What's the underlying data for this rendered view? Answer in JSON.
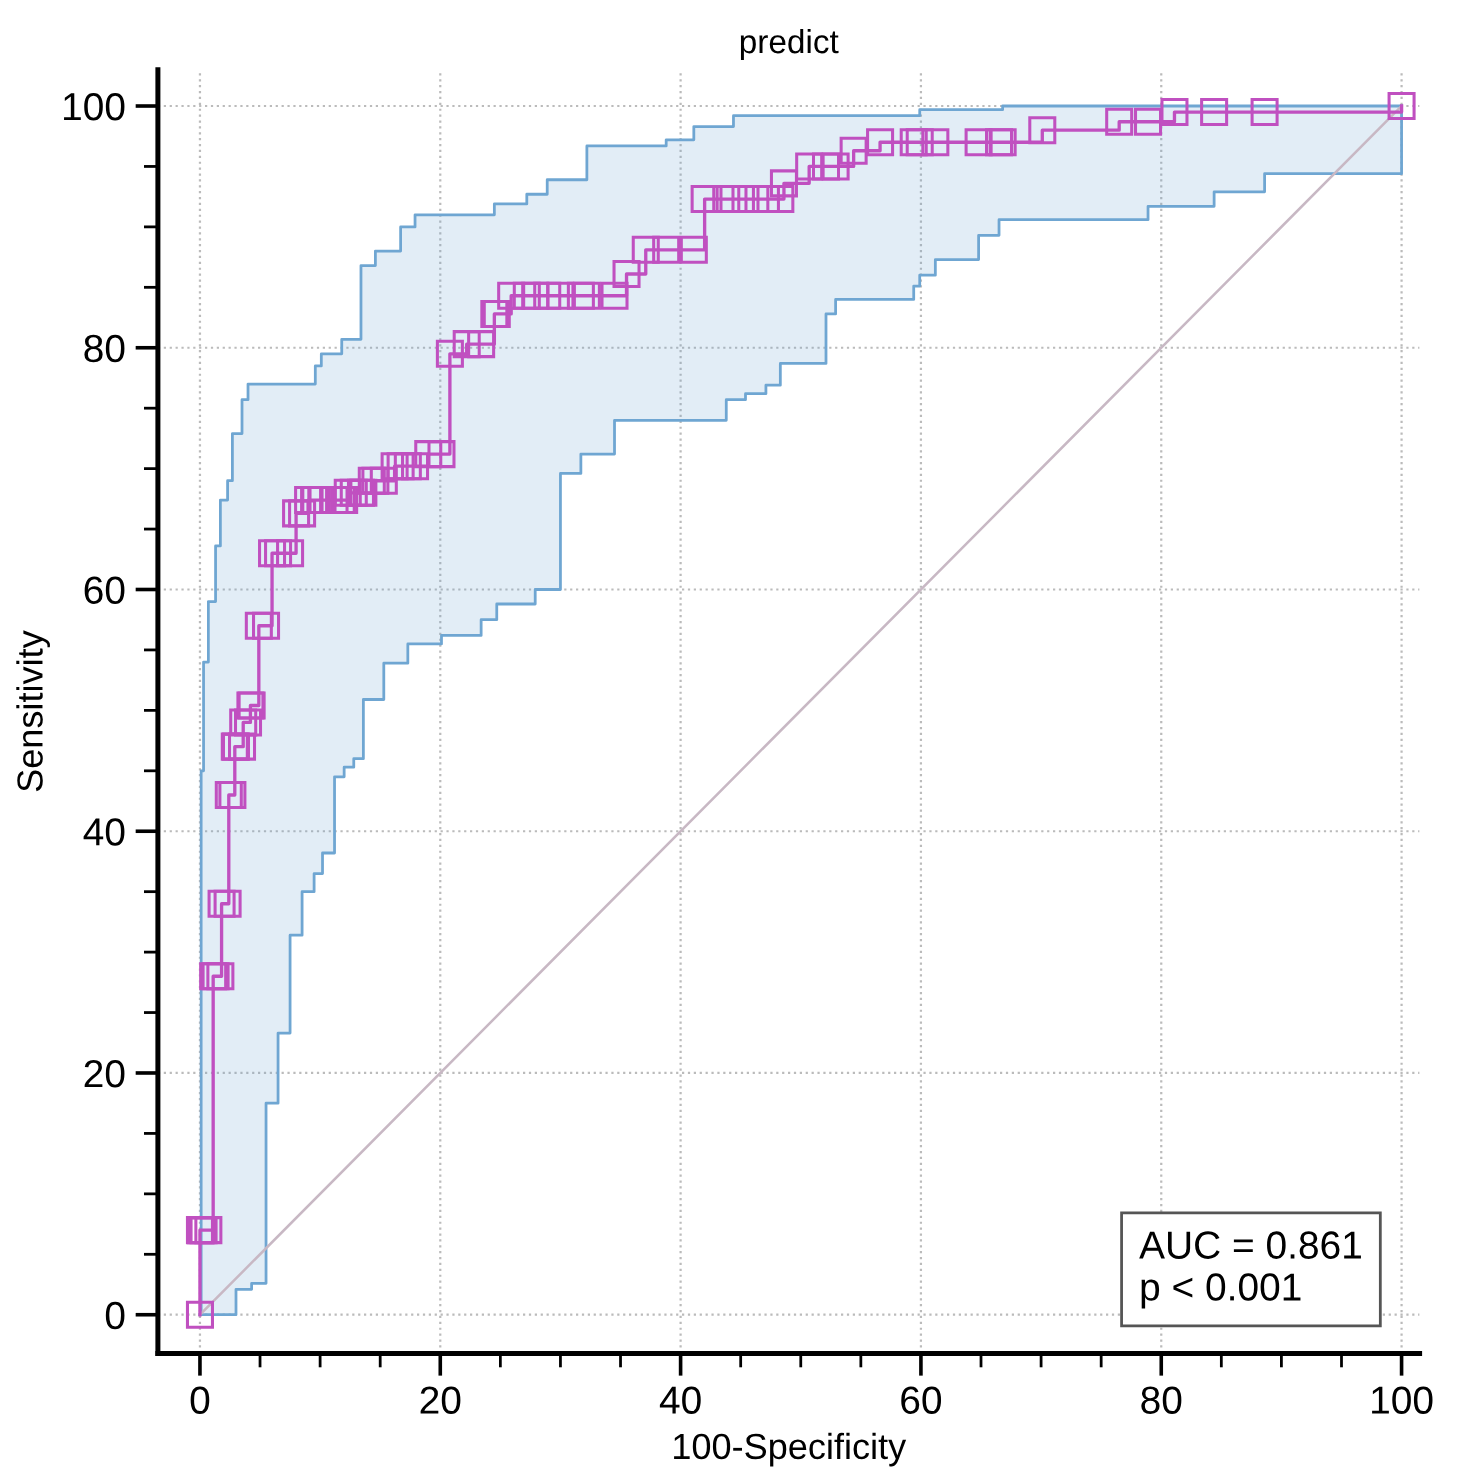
{
  "chart_data": {
    "type": "step",
    "title": "predict",
    "xlabel": "100-Specificity",
    "ylabel": "Sensitivity",
    "xlim": [
      -3.5,
      101.5
    ],
    "ylim": [
      -3.2,
      103
    ],
    "xticks": [
      0,
      20,
      40,
      60,
      80,
      100
    ],
    "yticks": [
      0,
      20,
      40,
      60,
      80,
      100
    ],
    "grid": true,
    "legend": false,
    "series": [
      {
        "color": "#c050c0",
        "marker": "square",
        "x": [
          0,
          0,
          0.1,
          0.3,
          0.7,
          1.1,
          1.3,
          1.7,
          1.8,
          2.3,
          2.4,
          2.7,
          2.9,
          3,
          3.5,
          3.6,
          4,
          4.2,
          4.3,
          4.9,
          5.5,
          6,
          6.5,
          7.5,
          8,
          8.5,
          9,
          9.5,
          9.6,
          10.1,
          10.2,
          11.2,
          11.8,
          12,
          12.3,
          12.8,
          13.4,
          13.6,
          14.3,
          14.6,
          15.3,
          16.2,
          16.7,
          17.3,
          17.9,
          19,
          20.1,
          20.8,
          22.2,
          23.4,
          24.5,
          24.7,
          25.9,
          27.2,
          27.9,
          28.9,
          30,
          31.7,
          32.2,
          34.5,
          35.5,
          37.1,
          38.8,
          41.1,
          42,
          43.8,
          44.4,
          45.4,
          47.1,
          48.3,
          48.6,
          50.7,
          52.1,
          52.9,
          54.4,
          56.6,
          59.4,
          59.9,
          61.2,
          64.8,
          66.5,
          66.8,
          70.1,
          76.5,
          78.9,
          81.1,
          84.4,
          88.6,
          100
        ],
        "values": [
          0,
          7,
          7,
          7,
          7,
          28,
          28,
          28,
          34,
          34,
          43,
          43,
          47,
          47,
          47,
          49,
          49,
          50.4,
          50.4,
          57,
          57,
          63,
          63,
          63,
          66.3,
          66.3,
          67.4,
          67.4,
          67.4,
          67.4,
          67.4,
          67.4,
          67.4,
          67.4,
          68,
          68,
          68,
          68,
          69,
          69,
          69,
          70.2,
          70.2,
          70.2,
          70.2,
          71.2,
          71.2,
          79.5,
          80.3,
          80.3,
          82.8,
          82.8,
          84.3,
          84.3,
          84.3,
          84.3,
          84.3,
          84.3,
          84.3,
          84.3,
          86.1,
          88.1,
          88.1,
          88.1,
          92.3,
          92.3,
          92.3,
          92.3,
          92.3,
          92.3,
          93.6,
          95,
          95,
          95,
          96.3,
          97,
          97,
          97,
          97,
          97,
          97,
          97,
          98,
          98.7,
          98.7,
          99.5,
          99.5,
          99.5,
          100
        ],
        "upper": [
          0,
          0,
          45,
          54,
          59,
          59,
          63.6,
          67.4,
          67.4,
          69,
          69,
          72.9,
          72.9,
          72.9,
          75.7,
          75.7,
          77,
          77,
          77,
          77,
          77,
          77,
          77,
          77,
          77,
          77,
          77,
          77,
          78.5,
          79.5,
          79.5,
          79.5,
          80.7,
          80.7,
          80.7,
          80.7,
          86.8,
          86.8,
          86.8,
          88,
          88,
          88,
          90,
          90,
          91,
          91,
          91,
          91,
          91,
          91,
          91.9,
          91.9,
          91.9,
          92.7,
          92.7,
          93.9,
          93.9,
          93.9,
          96.7,
          96.7,
          96.7,
          96.7,
          97.2,
          98.3,
          98.3,
          98.3,
          99.2,
          99.2,
          99.2,
          99.2,
          99.2,
          99.2,
          99.2,
          99.2,
          99.2,
          99.2,
          99.2,
          99.7,
          99.7,
          99.7,
          99.7,
          100,
          100,
          100,
          100,
          100,
          100,
          100,
          100
        ],
        "lower": [
          0,
          0,
          0,
          0,
          0,
          0,
          0,
          0,
          0,
          0,
          0,
          0,
          0,
          2.1,
          2.1,
          2.1,
          2.1,
          2.1,
          2.6,
          2.6,
          17.5,
          17.5,
          23.3,
          31.4,
          31.4,
          35,
          35,
          36.5,
          36.5,
          36.5,
          38.2,
          44.5,
          44.5,
          45.3,
          45.3,
          46,
          46,
          50.9,
          50.9,
          50.9,
          53.9,
          53.9,
          53.9,
          55.5,
          55.5,
          55.5,
          56.2,
          56.2,
          56.2,
          57.5,
          57.5,
          58.8,
          58.8,
          58.8,
          60,
          60,
          69.6,
          71.2,
          71.2,
          74,
          74,
          74,
          74,
          74,
          74,
          75.7,
          75.7,
          76.2,
          76.9,
          78.7,
          78.7,
          78.7,
          82.8,
          84,
          84,
          84,
          85.1,
          86,
          87.3,
          89.3,
          90.6,
          90.6,
          90.6,
          90.6,
          91.7,
          91.7,
          92.9,
          94.4,
          100
        ]
      },
      {
        "type": "line",
        "color": "#c8b8c4",
        "marker": "none",
        "x": [
          0,
          100
        ],
        "values": [
          0,
          100
        ]
      }
    ],
    "annotations": [
      "AUC = 0.861",
      "p < 0.001"
    ]
  }
}
